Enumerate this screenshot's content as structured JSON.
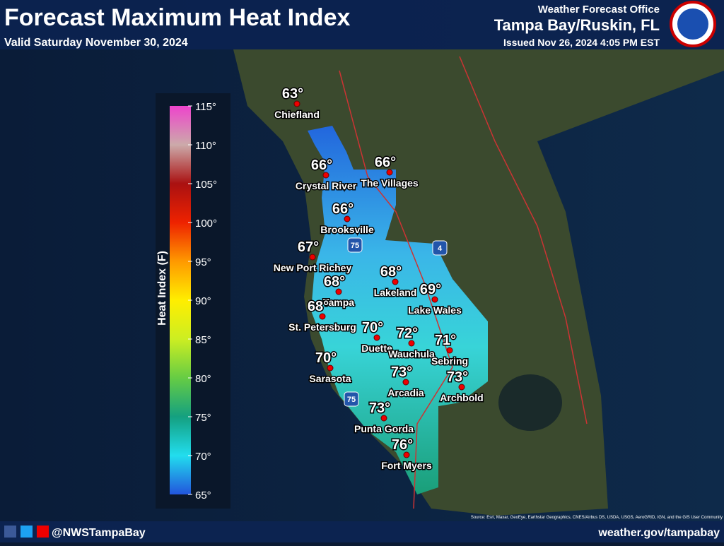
{
  "header": {
    "title": "Forecast Maximum Heat Index",
    "subtitle": "Valid Saturday November 30, 2024",
    "office": "Weather Forecast Office",
    "location": "Tampa Bay/Ruskin, FL",
    "issued": "Issued Nov 26, 2024 4:05 PM EST"
  },
  "legend": {
    "title": "Heat Index (F)",
    "ticks": [
      {
        "value": 115,
        "label": "115°"
      },
      {
        "value": 110,
        "label": "110°"
      },
      {
        "value": 105,
        "label": "105°"
      },
      {
        "value": 100,
        "label": "100°"
      },
      {
        "value": 95,
        "label": "95°"
      },
      {
        "value": 90,
        "label": "90°"
      },
      {
        "value": 85,
        "label": "85°"
      },
      {
        "value": 80,
        "label": "80°"
      },
      {
        "value": 75,
        "label": "75°"
      },
      {
        "value": 70,
        "label": "70°"
      },
      {
        "value": 65,
        "label": "65°"
      }
    ]
  },
  "cities": [
    {
      "name": "Chiefland",
      "label": "63°"
    },
    {
      "name": "Crystal River",
      "label": "66°"
    },
    {
      "name": "The Villages",
      "label": "66°"
    },
    {
      "name": "Brooksville",
      "label": "66°"
    },
    {
      "name": "New Port Richey",
      "label": "67°"
    },
    {
      "name": "Lakeland",
      "label": "68°"
    },
    {
      "name": "Tampa",
      "label": "68°"
    },
    {
      "name": "Lake Wales",
      "label": "69°"
    },
    {
      "name": "St. Petersburg",
      "label": "68°"
    },
    {
      "name": "Duette",
      "label": "70°"
    },
    {
      "name": "Wauchula",
      "label": "72°"
    },
    {
      "name": "Sebring",
      "label": "71°"
    },
    {
      "name": "Sarasota",
      "label": "70°"
    },
    {
      "name": "Arcadia",
      "label": "73°"
    },
    {
      "name": "Archbold",
      "label": "73°"
    },
    {
      "name": "Punta Gorda",
      "label": "73°"
    },
    {
      "name": "Fort Myers",
      "label": "76°"
    }
  ],
  "highways": [
    "75",
    "4",
    "75"
  ],
  "footer": {
    "handle": "@NWSTampaBay",
    "website": "weather.gov/tampabay",
    "source": "Source: Esri, Maxar, GeoEye, Earthstar Geographics, CNES/Airbus DS, USDA, USGS, AeroGRID, IGN, and the GIS User Community"
  }
}
